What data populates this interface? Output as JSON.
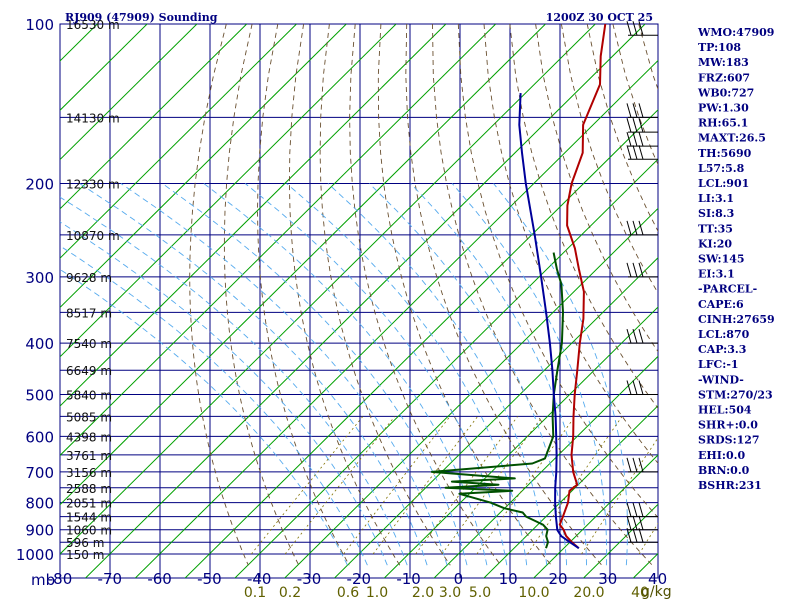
{
  "chart_data": {
    "type": "line",
    "title": "RJ909 (47909) Sounding",
    "time_label": "1200Z 30 OCT 25",
    "x_axis_unit": "mb",
    "pressure_ticks": [
      100,
      200,
      300,
      400,
      500,
      600,
      700,
      800,
      900,
      1000
    ],
    "temperature_ticks": [
      -80,
      -70,
      -60,
      -50,
      -40,
      -30,
      -20,
      -10,
      0,
      10,
      20,
      30,
      40
    ],
    "mixing_ratio_labels": [
      "0.1",
      "0.2",
      "0.6",
      "1.0",
      "2.0",
      "3.0",
      "5.0",
      "10.0",
      "20.0",
      "40"
    ],
    "mixing_ratio_values": [
      0.1,
      0.2,
      0.6,
      1.0,
      2.0,
      3.0,
      5.0,
      10.0,
      20.0,
      40
    ],
    "mixing_ratio_unit": "g/kg",
    "height_labels": [
      {
        "p": 100,
        "text": "16530 m"
      },
      {
        "p": 150,
        "text": "14130 m"
      },
      {
        "p": 200,
        "text": "12330 m"
      },
      {
        "p": 250,
        "text": "10870 m"
      },
      {
        "p": 300,
        "text": "9628 m"
      },
      {
        "p": 350,
        "text": "8517 m"
      },
      {
        "p": 400,
        "text": "7540 m"
      },
      {
        "p": 450,
        "text": "6649 m"
      },
      {
        "p": 500,
        "text": "5840 m"
      },
      {
        "p": 550,
        "text": "5085 m"
      },
      {
        "p": 600,
        "text": "4398 m"
      },
      {
        "p": 650,
        "text": "3761 m"
      },
      {
        "p": 700,
        "text": "3156 m"
      },
      {
        "p": 750,
        "text": "2588 m"
      },
      {
        "p": 800,
        "text": "2051 m"
      },
      {
        "p": 850,
        "text": "1544 m"
      },
      {
        "p": 900,
        "text": "1060 m"
      },
      {
        "p": 950,
        "text": "596 m"
      },
      {
        "p": 1000,
        "text": "150 m"
      }
    ],
    "series": [
      {
        "key": "temperature",
        "color": "#b00000",
        "points": [
          {
            "p": 975,
            "t": 23.0
          },
          {
            "p": 950,
            "t": 20.4
          },
          {
            "p": 925,
            "t": 18.0
          },
          {
            "p": 900,
            "t": 16.2
          },
          {
            "p": 880,
            "t": 14.4
          },
          {
            "p": 850,
            "t": 13.4
          },
          {
            "p": 800,
            "t": 11.6
          },
          {
            "p": 760,
            "t": 9.5
          },
          {
            "p": 740,
            "t": 9.8
          },
          {
            "p": 700,
            "t": 6.4
          },
          {
            "p": 650,
            "t": 2.6
          },
          {
            "p": 600,
            "t": -0.8
          },
          {
            "p": 550,
            "t": -4.8
          },
          {
            "p": 500,
            "t": -9.0
          },
          {
            "p": 450,
            "t": -13.4
          },
          {
            "p": 400,
            "t": -18.4
          },
          {
            "p": 360,
            "t": -22.6
          },
          {
            "p": 320,
            "t": -28.0
          },
          {
            "p": 290,
            "t": -33.6
          },
          {
            "p": 265,
            "t": -38.6
          },
          {
            "p": 240,
            "t": -44.8
          },
          {
            "p": 220,
            "t": -48.8
          },
          {
            "p": 200,
            "t": -52.4
          },
          {
            "p": 175,
            "t": -56.4
          },
          {
            "p": 155,
            "t": -62.0
          },
          {
            "p": 130,
            "t": -66.8
          },
          {
            "p": 115,
            "t": -72.4
          },
          {
            "p": 100,
            "t": -78.0
          }
        ]
      },
      {
        "key": "dewpoint",
        "color": "#005000",
        "points": [
          {
            "p": 975,
            "t": 16.4
          },
          {
            "p": 950,
            "t": 15.6
          },
          {
            "p": 925,
            "t": 14.0
          },
          {
            "p": 900,
            "t": 13.0
          },
          {
            "p": 880,
            "t": 11.0
          },
          {
            "p": 850,
            "t": 6.0
          },
          {
            "p": 835,
            "t": 4.5
          },
          {
            "p": 820,
            "t": 0.0
          },
          {
            "p": 800,
            "t": -4.0
          },
          {
            "p": 770,
            "t": -12.0
          },
          {
            "p": 760,
            "t": -2.0
          },
          {
            "p": 750,
            "t": -16.0
          },
          {
            "p": 740,
            "t": -6.0
          },
          {
            "p": 730,
            "t": -16.0
          },
          {
            "p": 720,
            "t": -4.0
          },
          {
            "p": 700,
            "t": -22.0
          },
          {
            "p": 675,
            "t": -3.5
          },
          {
            "p": 660,
            "t": -2.0
          },
          {
            "p": 600,
            "t": -4.8
          },
          {
            "p": 550,
            "t": -9.0
          },
          {
            "p": 500,
            "t": -13.2
          },
          {
            "p": 450,
            "t": -17.4
          },
          {
            "p": 400,
            "t": -22.0
          },
          {
            "p": 350,
            "t": -28.0
          },
          {
            "p": 310,
            "t": -34.0
          },
          {
            "p": 290,
            "t": -38.0
          },
          {
            "p": 270,
            "t": -42.0
          }
        ]
      },
      {
        "key": "parcel",
        "color": "#00009a",
        "points": [
          {
            "p": 975,
            "t": 23.0
          },
          {
            "p": 950,
            "t": 20.0
          },
          {
            "p": 925,
            "t": 17.0
          },
          {
            "p": 901,
            "t": 15.0
          },
          {
            "p": 850,
            "t": 12.0
          },
          {
            "p": 800,
            "t": 9.0
          },
          {
            "p": 750,
            "t": 6.0
          },
          {
            "p": 700,
            "t": 3.0
          },
          {
            "p": 650,
            "t": -0.4
          },
          {
            "p": 600,
            "t": -4.2
          },
          {
            "p": 550,
            "t": -8.4
          },
          {
            "p": 500,
            "t": -13.2
          },
          {
            "p": 450,
            "t": -18.4
          },
          {
            "p": 400,
            "t": -24.4
          },
          {
            "p": 350,
            "t": -31.4
          },
          {
            "p": 300,
            "t": -39.6
          },
          {
            "p": 250,
            "t": -49.4
          },
          {
            "p": 200,
            "t": -61.6
          },
          {
            "p": 175,
            "t": -68.6
          },
          {
            "p": 155,
            "t": -74.8
          },
          {
            "p": 135,
            "t": -81.0
          }
        ]
      }
    ],
    "wind_levels": [
      105,
      150,
      160,
      170,
      180,
      250,
      300,
      400,
      500,
      700,
      850,
      900,
      950
    ],
    "xlim": [
      -80,
      40
    ],
    "ylim": [
      100,
      1000
    ],
    "grid": true
  },
  "indices": {
    "lines": [
      "WMO:47909",
      "TP:108",
      "MW:183",
      "FRZ:607",
      "WB0:727",
      "PW:1.30",
      "RH:65.1",
      "MAXT:26.5",
      "TH:5690",
      "L57:5.8",
      "LCL:901",
      "LI:3.1",
      "SI:8.3",
      "TT:35",
      "KI:20",
      "SW:145",
      "EI:3.1",
      "-PARCEL-",
      "CAPE:6",
      "CINH:27659",
      "LCL:870",
      "CAP:3.3",
      "LFC:-1",
      "-WIND-",
      "STM:270/23",
      "HEL:504",
      "SHR+:0.0",
      "SRDS:127",
      "EHI:0.0",
      "BRN:0.0",
      "BSHR:231"
    ]
  }
}
